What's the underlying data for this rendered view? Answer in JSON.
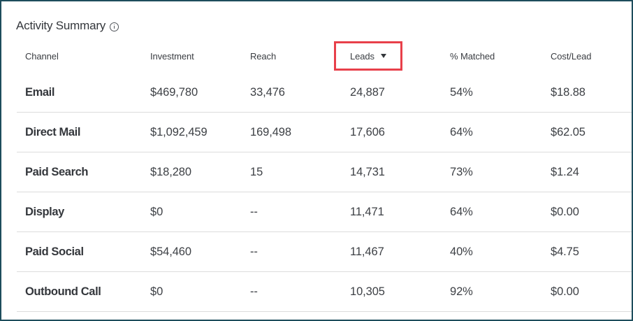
{
  "panel": {
    "title": "Activity Summary",
    "info_icon": "info-circle-icon"
  },
  "table": {
    "columns": [
      {
        "label": "Channel"
      },
      {
        "label": "Investment"
      },
      {
        "label": "Reach"
      },
      {
        "label": "Leads",
        "sorted": "descending",
        "sort_icon": "caret-down-icon",
        "highlighted": true
      },
      {
        "label": "% Matched"
      },
      {
        "label": "Cost/Lead"
      }
    ],
    "rows": [
      {
        "channel": "Email",
        "investment": "$469,780",
        "reach": "33,476",
        "leads": "24,887",
        "matched": "54%",
        "cost_per_lead": "$18.88"
      },
      {
        "channel": "Direct Mail",
        "investment": "$1,092,459",
        "reach": "169,498",
        "leads": "17,606",
        "matched": "64%",
        "cost_per_lead": "$62.05"
      },
      {
        "channel": "Paid Search",
        "investment": "$18,280",
        "reach": "15",
        "leads": "14,731",
        "matched": "73%",
        "cost_per_lead": "$1.24"
      },
      {
        "channel": "Display",
        "investment": "$0",
        "reach": "--",
        "leads": "11,471",
        "matched": "64%",
        "cost_per_lead": "$0.00"
      },
      {
        "channel": "Paid Social",
        "investment": "$54,460",
        "reach": "--",
        "leads": "11,467",
        "matched": "40%",
        "cost_per_lead": "$4.75"
      },
      {
        "channel": "Outbound Call",
        "investment": "$0",
        "reach": "--",
        "leads": "10,305",
        "matched": "92%",
        "cost_per_lead": "$0.00"
      }
    ]
  },
  "colors": {
    "frame_border": "#1e4d5c",
    "highlight_box": "#e8404a",
    "row_divider": "#dcdcdc",
    "text": "#34373c"
  }
}
